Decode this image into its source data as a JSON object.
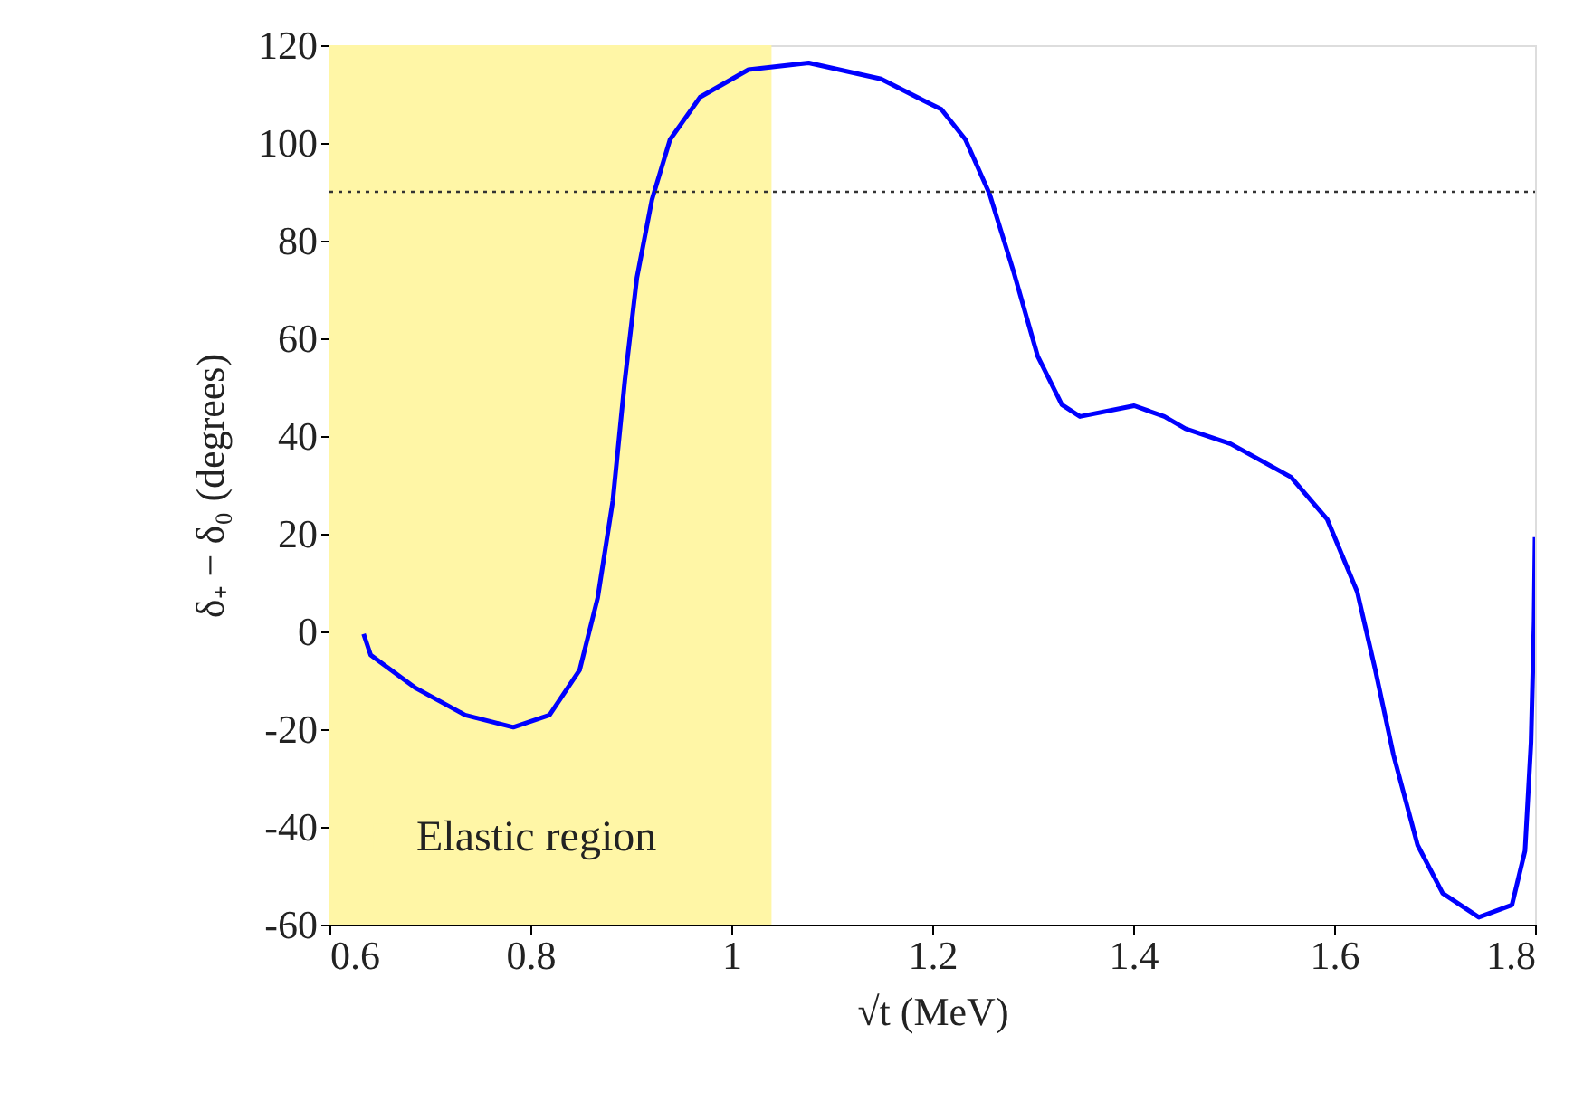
{
  "chart_data": {
    "type": "line",
    "xlabel": "√t (MeV)",
    "ylabel": "δ₊ − δ₀ (degrees)",
    "xlim": [
      0.6,
      1.8
    ],
    "xticks": [
      0.6,
      0.8,
      {
        "value": 1.0,
        "label": "1"
      },
      1.2,
      1.4,
      1.6,
      1.8
    ],
    "ylim": [
      -60,
      120
    ],
    "yticks": [
      -60,
      -40,
      -20,
      0,
      20,
      40,
      60,
      80,
      100,
      120
    ],
    "grid": false,
    "legend": "bottom left",
    "line_style": "solid",
    "marker": "none",
    "series": [
      {
        "color": "#0000ff",
        "x": [
          0.634,
          0.641,
          0.686,
          0.735,
          0.783,
          0.819,
          0.849,
          0.867,
          0.882,
          0.894,
          0.906,
          0.921,
          0.939,
          0.969,
          1.017,
          1.077,
          1.149,
          1.197,
          1.209,
          1.233,
          1.257,
          1.281,
          1.305,
          1.329,
          1.347,
          1.401,
          1.431,
          1.452,
          1.497,
          1.557,
          1.593,
          1.623,
          1.641,
          1.659,
          1.683,
          1.708,
          1.744,
          1.777,
          1.79,
          1.796,
          1.799,
          1.8
        ],
        "values": [
          -0.5,
          -4.8,
          -11.6,
          -17.1,
          -19.6,
          -17.1,
          -7.9,
          6.9,
          26.7,
          51.4,
          72.4,
          88.4,
          100.7,
          109.4,
          115,
          116.4,
          113.1,
          108.1,
          106.9,
          100.7,
          89.6,
          73.6,
          56.3,
          46.4,
          44,
          46.2,
          44,
          41.5,
          38.4,
          31.6,
          23,
          8.1,
          -7.9,
          -25.2,
          -43.7,
          -53.6,
          -58.5,
          -56,
          -44.9,
          -22.7,
          2,
          19.3
        ]
      }
    ],
    "ref_lines": [
      {
        "axis": "y",
        "value": 90,
        "color": "#333333",
        "line_style": "dotted"
      }
    ],
    "bands": [
      {
        "axis": "x",
        "from": 0.6,
        "to": 1.04,
        "label": "Elastic region",
        "color": "#fff6a6"
      }
    ]
  }
}
